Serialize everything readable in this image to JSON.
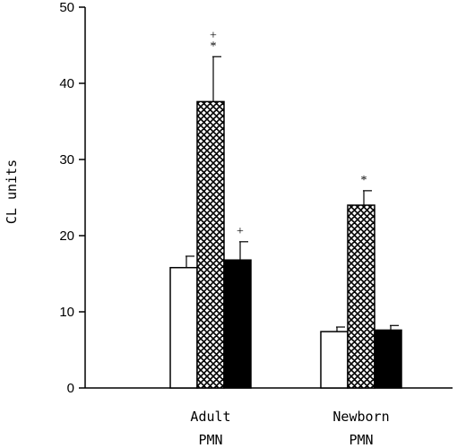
{
  "chart_data": {
    "type": "bar",
    "title": "",
    "ylabel": "CL units",
    "xlabel": "",
    "ylim": [
      0,
      50
    ],
    "yticks": [
      0,
      10,
      20,
      30,
      40,
      50
    ],
    "grid": false,
    "legend": "none",
    "categories": [
      {
        "line1": "Adult",
        "line2": "PMN"
      },
      {
        "line1": "Newborn",
        "line2": "PMN"
      }
    ],
    "series": [
      {
        "fill": "white",
        "values": [
          15.8,
          7.4
        ],
        "errors": [
          1.5,
          0.6
        ],
        "annotations": [
          "",
          ""
        ]
      },
      {
        "fill": "crosshatch",
        "values": [
          37.6,
          24.0
        ],
        "errors": [
          5.9,
          1.9
        ],
        "annotations": [
          "+\n*",
          "*"
        ]
      },
      {
        "fill": "black",
        "values": [
          16.8,
          7.6
        ],
        "errors": [
          2.4,
          0.6
        ],
        "annotations": [
          "+",
          ""
        ]
      }
    ]
  }
}
